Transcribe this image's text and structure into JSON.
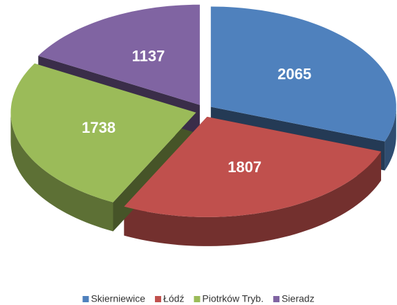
{
  "chart_data": {
    "type": "pie",
    "categories": [
      "Skierniewice",
      "Łódź",
      "Piotrków Tryb.",
      "Sieradz"
    ],
    "values": [
      2065,
      1807,
      1738,
      1137
    ],
    "colors": [
      "#4f81bd",
      "#c0504d",
      "#9bbb59",
      "#8064a2"
    ]
  }
}
